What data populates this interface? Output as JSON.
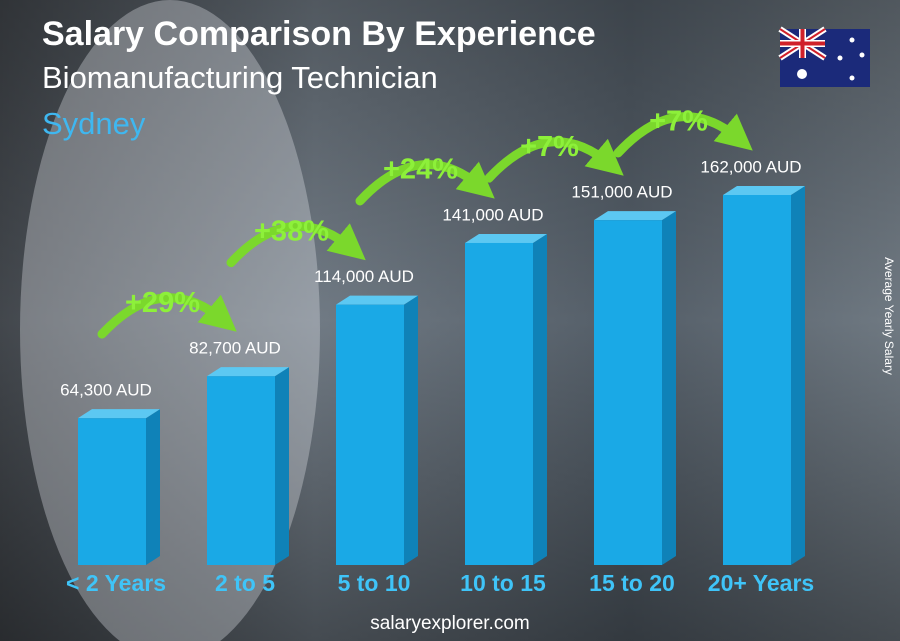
{
  "chart_data": {
    "type": "bar",
    "title": "Salary Comparison By Experience",
    "subtitle": "Biomanufacturing Technician",
    "location": "Sydney",
    "y_axis_label": "Average Yearly Salary",
    "footer": "salaryexplorer.com",
    "categories": [
      "< 2 Years",
      "2 to 5",
      "5 to 10",
      "10 to 15",
      "15 to 20",
      "20+ Years"
    ],
    "values": [
      64300,
      82700,
      114000,
      141000,
      151000,
      162000
    ],
    "value_labels": [
      "64,300 AUD",
      "82,700 AUD",
      "114,000 AUD",
      "141,000 AUD",
      "151,000 AUD",
      "162,000 AUD"
    ],
    "increases": [
      "+29%",
      "+38%",
      "+24%",
      "+7%",
      "+7%"
    ],
    "color": "#1aa9e6"
  }
}
